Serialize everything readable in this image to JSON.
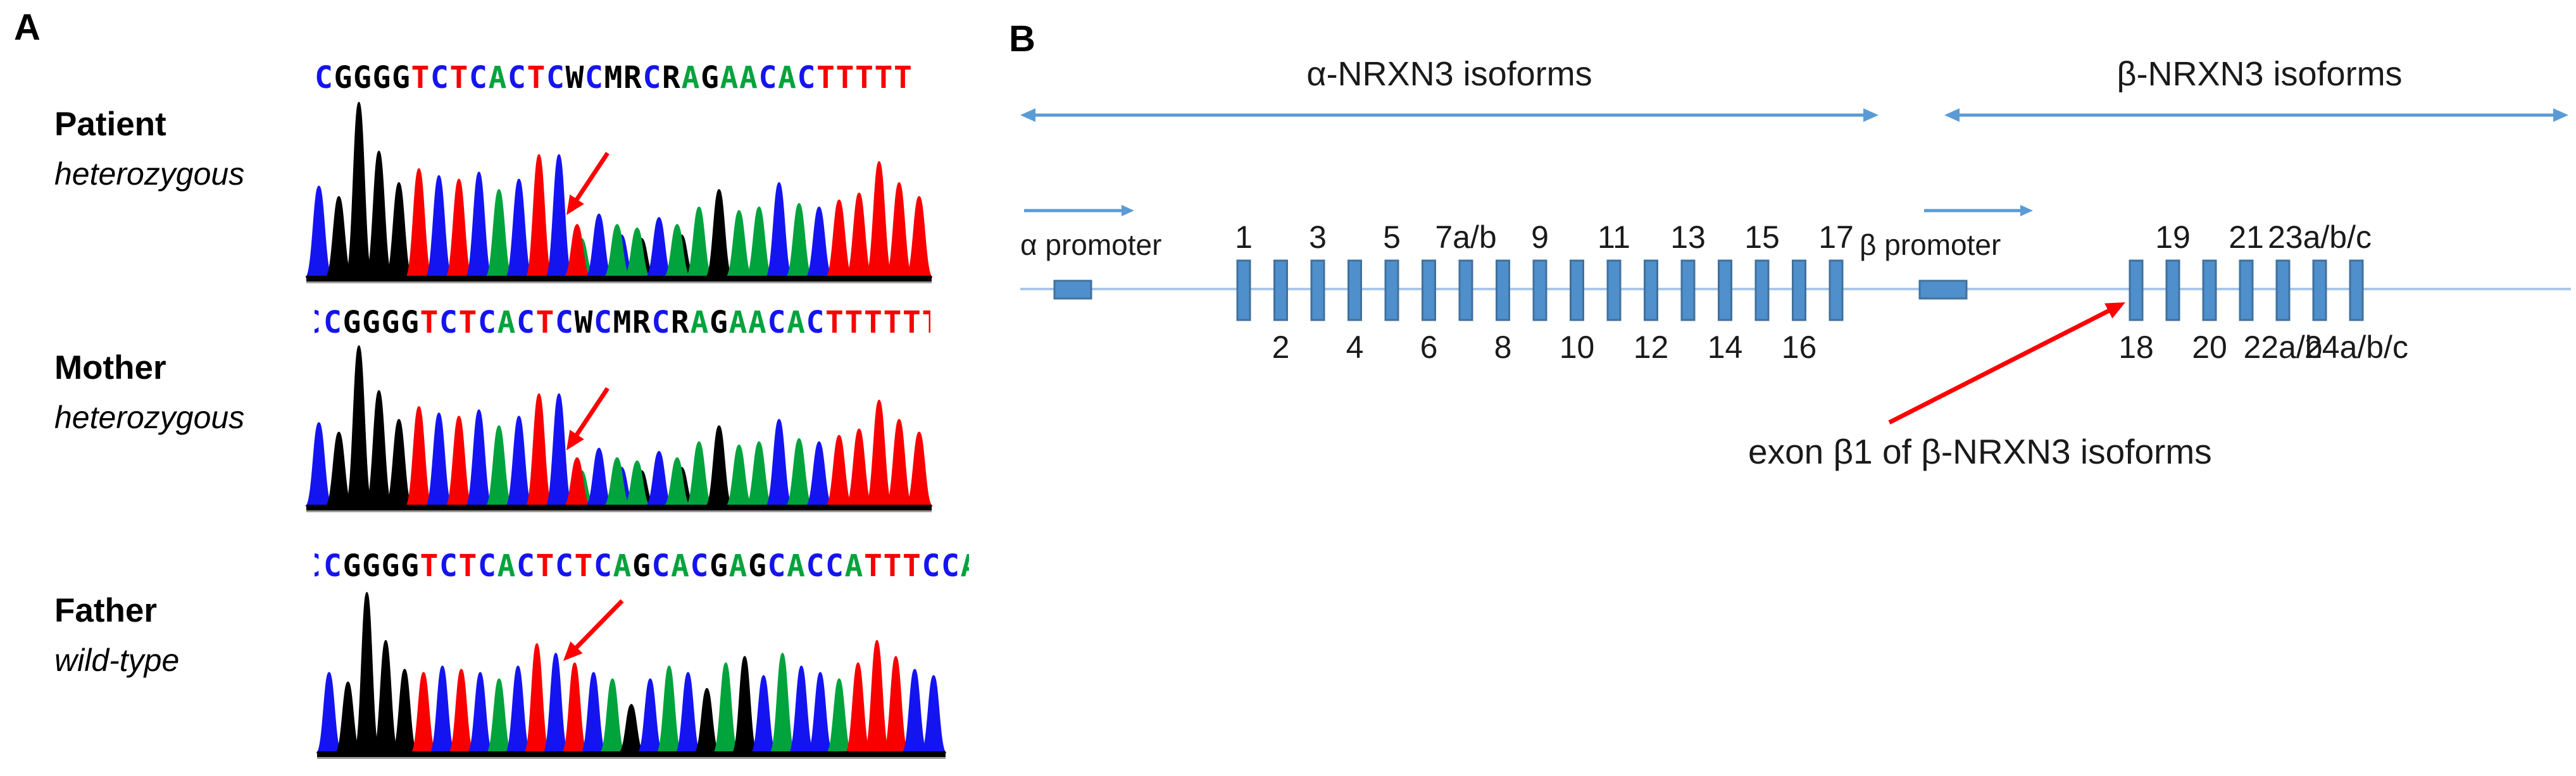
{
  "figure": {
    "panel_a_label": "A",
    "panel_b_label": "B"
  },
  "panel_a": {
    "base_colors": {
      "A": "#00A33C",
      "C": "#1414F0",
      "G": "#000000",
      "T": "#F80000",
      "W": "#000000",
      "M": "#000000",
      "R": "#000000"
    },
    "arrow_color": "#FF0000",
    "baseline_color": "#000000",
    "samples": [
      {
        "name": "Patient",
        "zygosity": "heterozygous",
        "sequence": "CGGGGTCTCACTCWCMRCRAGAACACTTTTT",
        "lead_partial": "",
        "trail_partial": "",
        "peaks": [
          [
            "C",
            0.52
          ],
          [
            "G",
            0.46
          ],
          [
            "G",
            1.0
          ],
          [
            "G",
            0.72
          ],
          [
            "G",
            0.54
          ],
          [
            "T",
            0.62
          ],
          [
            "C",
            0.58
          ],
          [
            "T",
            0.56
          ],
          [
            "C",
            0.6
          ],
          [
            "A",
            0.5
          ],
          [
            "C",
            0.56
          ],
          [
            "T",
            0.7
          ],
          [
            "C",
            0.7
          ],
          [
            "T",
            0.3,
            "A",
            0.22
          ],
          [
            "C",
            0.36
          ],
          [
            "A",
            0.3,
            "C",
            0.24
          ],
          [
            "A",
            0.28,
            "G",
            0.22
          ],
          [
            "C",
            0.34
          ],
          [
            "A",
            0.3,
            "G",
            0.24
          ],
          [
            "A",
            0.4
          ],
          [
            "G",
            0.5
          ],
          [
            "A",
            0.38
          ],
          [
            "A",
            0.4
          ],
          [
            "C",
            0.54
          ],
          [
            "A",
            0.42
          ],
          [
            "C",
            0.4
          ],
          [
            "T",
            0.44
          ],
          [
            "T",
            0.48
          ],
          [
            "T",
            0.66
          ],
          [
            "T",
            0.54
          ],
          [
            "T",
            0.46
          ]
        ]
      },
      {
        "name": "Mother",
        "zygosity": "heterozygous",
        "sequence": "CGGGGTCTCACTCWCMRCRAGAACACTTTTT",
        "lead_partial": "C",
        "trail_partial": "T",
        "peaks": [
          [
            "C",
            0.52
          ],
          [
            "G",
            0.46
          ],
          [
            "G",
            1.0
          ],
          [
            "G",
            0.72
          ],
          [
            "G",
            0.54
          ],
          [
            "T",
            0.62
          ],
          [
            "C",
            0.58
          ],
          [
            "T",
            0.56
          ],
          [
            "C",
            0.6
          ],
          [
            "A",
            0.5
          ],
          [
            "C",
            0.56
          ],
          [
            "T",
            0.7
          ],
          [
            "C",
            0.7
          ],
          [
            "T",
            0.3,
            "A",
            0.22
          ],
          [
            "C",
            0.36
          ],
          [
            "A",
            0.3,
            "C",
            0.24
          ],
          [
            "A",
            0.28,
            "G",
            0.22
          ],
          [
            "C",
            0.34
          ],
          [
            "A",
            0.3,
            "G",
            0.24
          ],
          [
            "A",
            0.4
          ],
          [
            "G",
            0.5
          ],
          [
            "A",
            0.38
          ],
          [
            "A",
            0.4
          ],
          [
            "C",
            0.54
          ],
          [
            "A",
            0.42
          ],
          [
            "C",
            0.4
          ],
          [
            "T",
            0.44
          ],
          [
            "T",
            0.48
          ],
          [
            "T",
            0.66
          ],
          [
            "T",
            0.54
          ],
          [
            "T",
            0.46
          ]
        ]
      },
      {
        "name": "Father",
        "zygosity": "wild-type",
        "sequence": "CGGGGTCTCACTCTCAGCACGAGCACCATTTCC",
        "lead_partial": "C",
        "trail_partial": "A",
        "peaks": [
          [
            "C",
            0.5
          ],
          [
            "G",
            0.44
          ],
          [
            "G",
            1.0
          ],
          [
            "G",
            0.7
          ],
          [
            "G",
            0.52
          ],
          [
            "T",
            0.5
          ],
          [
            "C",
            0.54
          ],
          [
            "T",
            0.52
          ],
          [
            "C",
            0.5
          ],
          [
            "A",
            0.46
          ],
          [
            "C",
            0.54
          ],
          [
            "T",
            0.68
          ],
          [
            "C",
            0.62
          ],
          [
            "T",
            0.56
          ],
          [
            "C",
            0.5
          ],
          [
            "A",
            0.46
          ],
          [
            "G",
            0.3
          ],
          [
            "C",
            0.46
          ],
          [
            "A",
            0.54
          ],
          [
            "C",
            0.5
          ],
          [
            "G",
            0.4
          ],
          [
            "A",
            0.56
          ],
          [
            "G",
            0.6
          ],
          [
            "C",
            0.48
          ],
          [
            "A",
            0.62
          ],
          [
            "C",
            0.54
          ],
          [
            "C",
            0.5
          ],
          [
            "A",
            0.46
          ],
          [
            "T",
            0.56
          ],
          [
            "T",
            0.7
          ],
          [
            "T",
            0.6
          ],
          [
            "C",
            0.52
          ],
          [
            "C",
            0.48
          ]
        ]
      }
    ]
  },
  "panel_b": {
    "alpha_isoforms_label": "α-NRXN3 isoforms",
    "beta_isoforms_label": "β-NRXN3 isoforms",
    "alpha_promoter_label": "α promoter",
    "beta_promoter_label": "β promoter",
    "annotation": "exon β1 of β-NRXN3 isoforms",
    "alpha_exons": [
      {
        "n": "1",
        "side": "top"
      },
      {
        "n": "2",
        "side": "bottom"
      },
      {
        "n": "3",
        "side": "top"
      },
      {
        "n": "4",
        "side": "bottom"
      },
      {
        "n": "5",
        "side": "top"
      },
      {
        "n": "6",
        "side": "bottom"
      },
      {
        "n": "7a/b",
        "side": "top"
      },
      {
        "n": "8",
        "side": "bottom"
      },
      {
        "n": "9",
        "side": "top"
      },
      {
        "n": "10",
        "side": "bottom"
      },
      {
        "n": "11",
        "side": "top"
      },
      {
        "n": "12",
        "side": "bottom"
      },
      {
        "n": "13",
        "side": "top"
      },
      {
        "n": "14",
        "side": "bottom"
      },
      {
        "n": "15",
        "side": "top"
      },
      {
        "n": "16",
        "side": "bottom"
      },
      {
        "n": "17",
        "side": "top"
      }
    ],
    "beta_exons": [
      {
        "n": "18",
        "side": "bottom"
      },
      {
        "n": "19",
        "side": "top"
      },
      {
        "n": "20",
        "side": "bottom"
      },
      {
        "n": "21",
        "side": "top"
      },
      {
        "n": "22a/b",
        "side": "bottom"
      },
      {
        "n": "23a/b/c",
        "side": "top"
      },
      {
        "n": "24a/b/c",
        "side": "bottom"
      }
    ],
    "colors": {
      "exon_fill": "#4E8FCC",
      "exon_border": "#41719C",
      "gene_line": "#A9C7E8",
      "blue_arrow": "#5B9BD5",
      "red_arrow": "#FF0000",
      "text": "#1A1A1A"
    }
  }
}
